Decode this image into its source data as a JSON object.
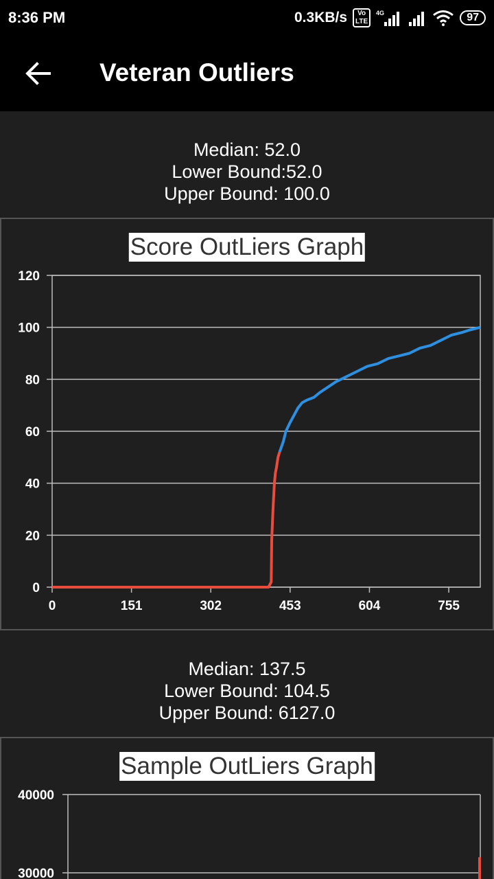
{
  "status_bar": {
    "time": "8:36 PM",
    "net_speed": "0.3KB/s",
    "volte_label": "Vo\nLTE",
    "signal_label": "4G",
    "battery": "97"
  },
  "app_bar": {
    "title": "Veteran Outliers",
    "back_icon": "arrow-left-icon"
  },
  "score_stats": {
    "median": "Median: 52.0",
    "lower": "Lower Bound:52.0",
    "upper": "Upper Bound: 100.0"
  },
  "sample_stats": {
    "median": "Median: 137.5",
    "lower": "Lower Bound: 104.5",
    "upper": "Upper Bound: 6127.0"
  },
  "colors": {
    "below_bound": "#e84c3d",
    "above_bound": "#2e8fe0",
    "grid": "#bdbdbd",
    "background": "#1f1f1f"
  },
  "chart_data": [
    {
      "type": "line",
      "title": "Score OutLiers Graph",
      "xlim": [
        0,
        815
      ],
      "ylim": [
        0,
        120
      ],
      "xticks": [
        "0",
        "151",
        "302",
        "453",
        "604",
        "755"
      ],
      "xtick_values": [
        0,
        151,
        302,
        453,
        604,
        755
      ],
      "yticks": [
        "0",
        "20",
        "40",
        "60",
        "80",
        "100",
        "120"
      ],
      "ytick_values": [
        0,
        20,
        40,
        60,
        80,
        100,
        120
      ],
      "grid": true,
      "series": [
        {
          "color": "#e84c3d",
          "points": [
            [
              0,
              0
            ],
            [
              412,
              0
            ],
            [
              417,
              2
            ],
            [
              418,
              18
            ],
            [
              420,
              28
            ],
            [
              421,
              32
            ],
            [
              423,
              40
            ],
            [
              425,
              44
            ],
            [
              427,
              46
            ],
            [
              430,
              50
            ],
            [
              433,
              52
            ]
          ]
        },
        {
          "color": "#2e8fe0",
          "points": [
            [
              433,
              52
            ],
            [
              440,
              56
            ],
            [
              445,
              60
            ],
            [
              452,
              63
            ],
            [
              460,
              66
            ],
            [
              468,
              69
            ],
            [
              476,
              71
            ],
            [
              485,
              72
            ],
            [
              498,
              73
            ],
            [
              510,
              75
            ],
            [
              525,
              77
            ],
            [
              540,
              79
            ],
            [
              560,
              81
            ],
            [
              580,
              83
            ],
            [
              600,
              85
            ],
            [
              620,
              86
            ],
            [
              640,
              88
            ],
            [
              660,
              89
            ],
            [
              680,
              90
            ],
            [
              700,
              92
            ],
            [
              720,
              93
            ],
            [
              740,
              95
            ],
            [
              760,
              97
            ],
            [
              780,
              98
            ],
            [
              795,
              99
            ],
            [
              815,
              100
            ]
          ]
        }
      ]
    },
    {
      "type": "line",
      "title": "Sample OutLiers Graph",
      "ylim": [
        0,
        40000
      ],
      "yticks": [
        "40000",
        "30000"
      ],
      "ytick_values": [
        40000,
        30000
      ],
      "grid": true,
      "series": [
        {
          "color": "#e84c3d",
          "points": [
            [
              1,
              32000
            ],
            [
              1,
              29000
            ]
          ]
        }
      ]
    }
  ]
}
